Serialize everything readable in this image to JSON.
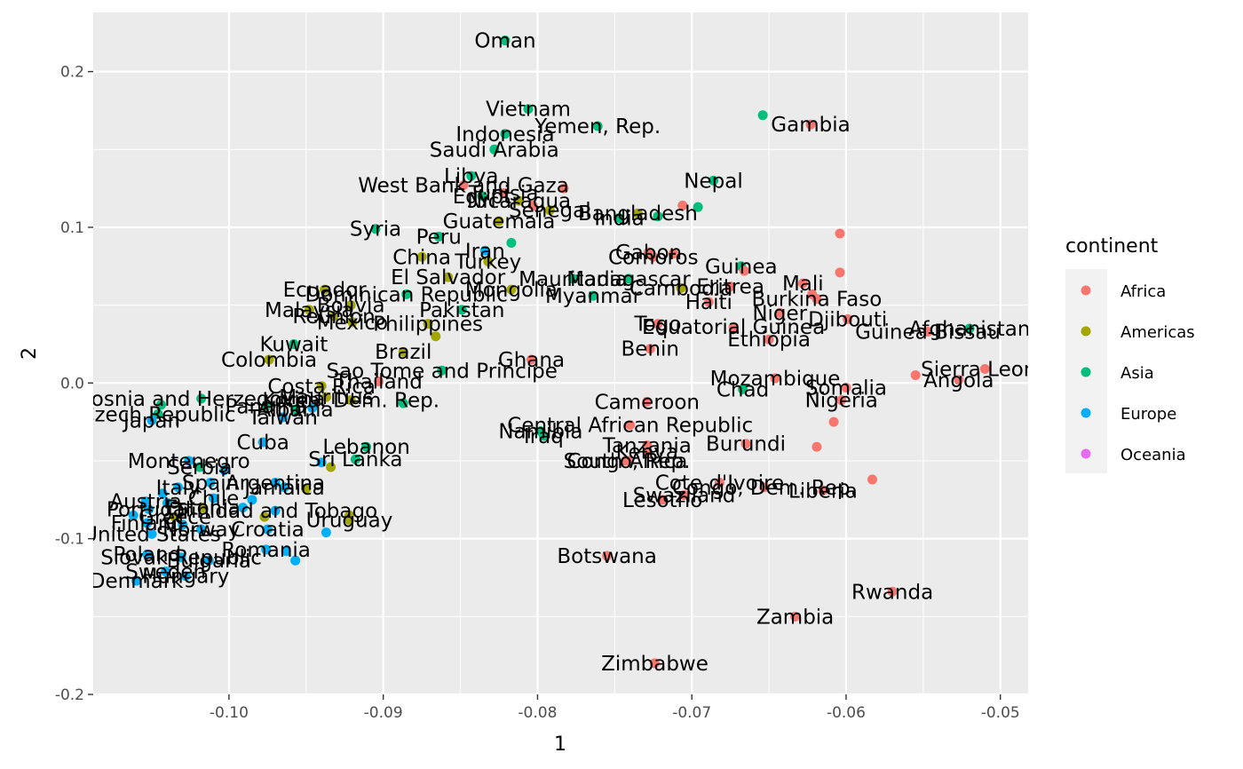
{
  "chart_data": {
    "type": "scatter",
    "title": "",
    "xlabel": "1",
    "ylabel": "2",
    "xlim": [
      -0.1088,
      -0.0482
    ],
    "ylim": [
      -0.2,
      0.238
    ],
    "x_ticks": [
      -0.1,
      -0.09,
      -0.08,
      -0.07,
      -0.06,
      -0.05
    ],
    "x_tick_labels": [
      "-0.10",
      "-0.09",
      "-0.08",
      "-0.07",
      "-0.06",
      "-0.05"
    ],
    "y_ticks": [
      -0.2,
      -0.1,
      0.0,
      0.1,
      0.2
    ],
    "y_tick_labels": [
      "-0.2",
      "-0.1",
      "0.0",
      "0.1",
      "0.2"
    ],
    "grid": true,
    "legend": {
      "title": "continent",
      "position": "right",
      "entries": [
        {
          "name": "Africa",
          "color": "#F8766D"
        },
        {
          "name": "Americas",
          "color": "#A3A500"
        },
        {
          "name": "Asia",
          "color": "#00BF7D"
        },
        {
          "name": "Europe",
          "color": "#00B0F6"
        },
        {
          "name": "Oceania",
          "color": "#E76BF3"
        }
      ]
    },
    "points": [
      {
        "x": -0.0821,
        "y": 0.22,
        "c": "Asia",
        "label": "Oman"
      },
      {
        "x": -0.0806,
        "y": 0.176,
        "c": "Asia",
        "label": "Vietnam"
      },
      {
        "x": -0.0761,
        "y": 0.165,
        "c": "Asia",
        "label": "Yemen, Rep."
      },
      {
        "x": -0.0654,
        "y": 0.172,
        "c": "Asia",
        "label": ""
      },
      {
        "x": -0.0623,
        "y": 0.166,
        "c": "Africa",
        "label": "Gambia"
      },
      {
        "x": -0.0821,
        "y": 0.16,
        "c": "Asia",
        "label": "Indonesia"
      },
      {
        "x": -0.0828,
        "y": 0.15,
        "c": "Asia",
        "label": "Saudi Arabia"
      },
      {
        "x": -0.0843,
        "y": 0.133,
        "c": "Asia",
        "label": "Libya"
      },
      {
        "x": -0.0848,
        "y": 0.127,
        "c": "Africa",
        "label": "West Bank and Gaza"
      },
      {
        "x": -0.0686,
        "y": 0.13,
        "c": "Asia",
        "label": "Nepal"
      },
      {
        "x": -0.0783,
        "y": 0.125,
        "c": "Africa",
        "label": ""
      },
      {
        "x": -0.0822,
        "y": 0.122,
        "c": "Africa",
        "label": "Tunisia"
      },
      {
        "x": -0.0836,
        "y": 0.12,
        "c": "Asia",
        "label": "Egypt"
      },
      {
        "x": -0.0812,
        "y": 0.117,
        "c": "Americas",
        "label": "Nicaragua"
      },
      {
        "x": -0.0803,
        "y": 0.114,
        "c": "Africa",
        "label": ""
      },
      {
        "x": -0.0735,
        "y": 0.109,
        "c": "Americas",
        "label": "Bangladesh"
      },
      {
        "x": -0.0722,
        "y": 0.107,
        "c": "Asia",
        "label": ""
      },
      {
        "x": -0.0706,
        "y": 0.114,
        "c": "Africa",
        "label": ""
      },
      {
        "x": -0.0696,
        "y": 0.113,
        "c": "Asia",
        "label": ""
      },
      {
        "x": -0.0792,
        "y": 0.111,
        "c": "Americas",
        "label": "Senegal"
      },
      {
        "x": -0.0825,
        "y": 0.104,
        "c": "Americas",
        "label": "Guatemala"
      },
      {
        "x": -0.0905,
        "y": 0.099,
        "c": "Asia",
        "label": "Syria"
      },
      {
        "x": -0.0747,
        "y": 0.106,
        "c": "Asia",
        "label": "India"
      },
      {
        "x": -0.0864,
        "y": 0.094,
        "c": "Asia",
        "label": "Peru"
      },
      {
        "x": -0.0817,
        "y": 0.09,
        "c": "Asia",
        "label": ""
      },
      {
        "x": -0.0604,
        "y": 0.096,
        "c": "Africa",
        "label": ""
      },
      {
        "x": -0.0834,
        "y": 0.085,
        "c": "Europe",
        "label": "Iran"
      },
      {
        "x": -0.0728,
        "y": 0.084,
        "c": "Africa",
        "label": "Gabon"
      },
      {
        "x": -0.0725,
        "y": 0.081,
        "c": "Africa",
        "label": "Comoros"
      },
      {
        "x": -0.0712,
        "y": 0.083,
        "c": "Africa",
        "label": ""
      },
      {
        "x": -0.0875,
        "y": 0.081,
        "c": "Americas",
        "label": "China"
      },
      {
        "x": -0.0832,
        "y": 0.078,
        "c": "Americas",
        "label": "Turkey"
      },
      {
        "x": -0.0668,
        "y": 0.075,
        "c": "Asia",
        "label": "Guinea"
      },
      {
        "x": -0.0666,
        "y": 0.072,
        "c": "Africa",
        "label": ""
      },
      {
        "x": -0.0604,
        "y": 0.071,
        "c": "Africa",
        "label": ""
      },
      {
        "x": -0.0858,
        "y": 0.068,
        "c": "Americas",
        "label": "El Salvador"
      },
      {
        "x": -0.0777,
        "y": 0.067,
        "c": "Asia",
        "label": "Mauritania"
      },
      {
        "x": -0.0741,
        "y": 0.067,
        "c": "Asia",
        "label": "Madagascar"
      },
      {
        "x": -0.0628,
        "y": 0.064,
        "c": "Africa",
        "label": "Mali"
      },
      {
        "x": -0.0938,
        "y": 0.06,
        "c": "Americas",
        "label": "Ecuador"
      },
      {
        "x": -0.0707,
        "y": 0.061,
        "c": "Americas",
        "label": "Cambodia"
      },
      {
        "x": -0.0675,
        "y": 0.062,
        "c": "Africa",
        "label": "Eritrea"
      },
      {
        "x": -0.0885,
        "y": 0.057,
        "c": "Asia",
        "label": "Dominican Republic"
      },
      {
        "x": -0.0817,
        "y": 0.06,
        "c": "Americas",
        "label": "Mongolia"
      },
      {
        "x": -0.0764,
        "y": 0.056,
        "c": "Asia",
        "label": "Myanmar"
      },
      {
        "x": -0.0622,
        "y": 0.057,
        "c": "Africa",
        "label": ""
      },
      {
        "x": -0.0619,
        "y": 0.054,
        "c": "Africa",
        "label": "Burkina Faso"
      },
      {
        "x": -0.0689,
        "y": 0.052,
        "c": "Africa",
        "label": "Haiti"
      },
      {
        "x": -0.0921,
        "y": 0.05,
        "c": "Americas",
        "label": "Bolivia"
      },
      {
        "x": -0.0948,
        "y": 0.047,
        "c": "Americas",
        "label": "Malaysia"
      },
      {
        "x": -0.0849,
        "y": 0.047,
        "c": "Asia",
        "label": "Pakistan"
      },
      {
        "x": -0.0643,
        "y": 0.045,
        "c": "Africa",
        "label": "Niger"
      },
      {
        "x": -0.0932,
        "y": 0.043,
        "c": "Americas",
        "label": "Reunion"
      },
      {
        "x": -0.0599,
        "y": 0.041,
        "c": "Africa",
        "label": "Djibouti"
      },
      {
        "x": -0.092,
        "y": 0.039,
        "c": "Americas",
        "label": "Mexico"
      },
      {
        "x": -0.0871,
        "y": 0.038,
        "c": "Americas",
        "label": "Philippines"
      },
      {
        "x": -0.0722,
        "y": 0.038,
        "c": "Africa",
        "label": "Togo"
      },
      {
        "x": -0.0673,
        "y": 0.036,
        "c": "Africa",
        "label": "Equatorial Guinea"
      },
      {
        "x": -0.052,
        "y": 0.035,
        "c": "Asia",
        "label": "Afghanistan"
      },
      {
        "x": -0.0547,
        "y": 0.033,
        "c": "Africa",
        "label": "Guinea-Bissau"
      },
      {
        "x": -0.0866,
        "y": 0.03,
        "c": "Americas",
        "label": ""
      },
      {
        "x": -0.0958,
        "y": 0.025,
        "c": "Asia",
        "label": "Kuwait"
      },
      {
        "x": -0.0727,
        "y": 0.022,
        "c": "Africa",
        "label": "Benin"
      },
      {
        "x": -0.065,
        "y": 0.028,
        "c": "Africa",
        "label": "Ethiopia"
      },
      {
        "x": -0.0887,
        "y": 0.02,
        "c": "Americas",
        "label": "Brazil"
      },
      {
        "x": -0.0974,
        "y": 0.015,
        "c": "Americas",
        "label": "Colombia"
      },
      {
        "x": -0.0804,
        "y": 0.015,
        "c": "Africa",
        "label": "Ghana"
      },
      {
        "x": -0.051,
        "y": 0.009,
        "c": "Africa",
        "label": "Sierra Leone"
      },
      {
        "x": -0.0555,
        "y": 0.005,
        "c": "Africa",
        "label": ""
      },
      {
        "x": -0.0862,
        "y": 0.008,
        "c": "Asia",
        "label": "Sao Tome and Principe"
      },
      {
        "x": -0.0903,
        "y": 0.001,
        "c": "Africa",
        "label": "Thailand"
      },
      {
        "x": -0.0646,
        "y": 0.003,
        "c": "Africa",
        "label": "Mozambique"
      },
      {
        "x": -0.0527,
        "y": 0.002,
        "c": "Africa",
        "label": "Angola"
      },
      {
        "x": -0.094,
        "y": -0.002,
        "c": "Americas",
        "label": "Costa Rica"
      },
      {
        "x": -0.06,
        "y": -0.003,
        "c": "Africa",
        "label": "Somalia"
      },
      {
        "x": -0.0667,
        "y": -0.004,
        "c": "Asia",
        "label": "Chad"
      },
      {
        "x": -0.0937,
        "y": -0.009,
        "c": "Americas",
        "label": "Mauritius"
      },
      {
        "x": -0.0921,
        "y": -0.011,
        "c": "Americas",
        "label": "Korea, Dem. Rep."
      },
      {
        "x": -0.0603,
        "y": -0.011,
        "c": "Africa",
        "label": "Nigeria"
      },
      {
        "x": -0.0729,
        "y": -0.012,
        "c": "Africa",
        "label": "Cameroon"
      },
      {
        "x": -0.0887,
        "y": -0.013,
        "c": "Asia",
        "label": ""
      },
      {
        "x": -0.1018,
        "y": -0.01,
        "c": "Asia",
        "label": "Bosnia and Herzegovina"
      },
      {
        "x": -0.1044,
        "y": -0.014,
        "c": "Asia",
        "label": ""
      },
      {
        "x": -0.0976,
        "y": -0.015,
        "c": "Asia",
        "label": "Panama"
      },
      {
        "x": -0.0957,
        "y": -0.017,
        "c": "Asia",
        "label": "Albania"
      },
      {
        "x": -0.0946,
        "y": -0.016,
        "c": "Europe",
        "label": ""
      },
      {
        "x": -0.1046,
        "y": -0.02,
        "c": "Asia",
        "label": "Czech Republic"
      },
      {
        "x": -0.105,
        "y": -0.024,
        "c": "Europe",
        "label": "Japan"
      },
      {
        "x": -0.0965,
        "y": -0.022,
        "c": "Europe",
        "label": "Taiwan"
      },
      {
        "x": -0.0608,
        "y": -0.025,
        "c": "Africa",
        "label": ""
      },
      {
        "x": -0.074,
        "y": -0.027,
        "c": "Africa",
        "label": "Central African Republic"
      },
      {
        "x": -0.0798,
        "y": -0.031,
        "c": "Asia",
        "label": "Namibia"
      },
      {
        "x": -0.0796,
        "y": -0.034,
        "c": "Asia",
        "label": "Iraq"
      },
      {
        "x": -0.0665,
        "y": -0.039,
        "c": "Africa",
        "label": "Burundi"
      },
      {
        "x": -0.0619,
        "y": -0.041,
        "c": "Africa",
        "label": ""
      },
      {
        "x": -0.0978,
        "y": -0.038,
        "c": "Europe",
        "label": "Cuba"
      },
      {
        "x": -0.0911,
        "y": -0.041,
        "c": "Asia",
        "label": "Lebanon"
      },
      {
        "x": -0.0729,
        "y": -0.04,
        "c": "Africa",
        "label": "Tanzania"
      },
      {
        "x": -0.0729,
        "y": -0.044,
        "c": "Africa",
        "label": "Kenya"
      },
      {
        "x": -0.0741,
        "y": -0.05,
        "c": "Africa",
        "label": "Congo, Rep."
      },
      {
        "x": -0.1026,
        "y": -0.05,
        "c": "Europe",
        "label": "Montenegro"
      },
      {
        "x": -0.0918,
        "y": -0.049,
        "c": "Asia",
        "label": "Sri Lanka"
      },
      {
        "x": -0.1019,
        "y": -0.054,
        "c": "Asia",
        "label": "Serbia"
      },
      {
        "x": -0.1003,
        "y": -0.056,
        "c": "Europe",
        "label": ""
      },
      {
        "x": -0.094,
        "y": -0.051,
        "c": "Europe",
        "label": ""
      },
      {
        "x": -0.0934,
        "y": -0.054,
        "c": "Americas",
        "label": ""
      },
      {
        "x": -0.0743,
        "y": -0.05,
        "c": "Africa",
        "label": "South Africa"
      },
      {
        "x": -0.0583,
        "y": -0.062,
        "c": "Africa",
        "label": ""
      },
      {
        "x": -0.0682,
        "y": -0.064,
        "c": "Africa",
        "label": "Cote d'Ivoire"
      },
      {
        "x": -0.0653,
        "y": -0.067,
        "c": "Africa",
        "label": "Congo, Dem. Rep."
      },
      {
        "x": -0.0615,
        "y": -0.069,
        "c": "Africa",
        "label": "Liberia"
      },
      {
        "x": -0.0705,
        "y": -0.072,
        "c": "Africa",
        "label": "Swaziland"
      },
      {
        "x": -0.0719,
        "y": -0.075,
        "c": "Africa",
        "label": "Lesotho"
      },
      {
        "x": -0.1012,
        "y": -0.064,
        "c": "Europe",
        "label": "Spain"
      },
      {
        "x": -0.097,
        "y": -0.064,
        "c": "Europe",
        "label": "Argentina"
      },
      {
        "x": -0.0964,
        "y": -0.067,
        "c": "Europe",
        "label": "Jamaica"
      },
      {
        "x": -0.095,
        "y": -0.068,
        "c": "Americas",
        "label": ""
      },
      {
        "x": -0.1033,
        "y": -0.067,
        "c": "Europe",
        "label": "Italy"
      },
      {
        "x": -0.1043,
        "y": -0.071,
        "c": "Europe",
        "label": ""
      },
      {
        "x": -0.101,
        "y": -0.074,
        "c": "Europe",
        "label": "Chile"
      },
      {
        "x": -0.0985,
        "y": -0.075,
        "c": "Europe",
        "label": ""
      },
      {
        "x": -0.1054,
        "y": -0.076,
        "c": "Europe",
        "label": "Austria"
      },
      {
        "x": -0.104,
        "y": -0.077,
        "c": "Europe",
        "label": ""
      },
      {
        "x": -0.1017,
        "y": -0.08,
        "c": "Americas",
        "label": "Estonia"
      },
      {
        "x": -0.0991,
        "y": -0.08,
        "c": "Europe",
        "label": ""
      },
      {
        "x": -0.097,
        "y": -0.082,
        "c": "Europe",
        "label": "Trinidad and Tobago"
      },
      {
        "x": -0.0922,
        "y": -0.085,
        "c": "Americas",
        "label": ""
      },
      {
        "x": -0.1052,
        "y": -0.081,
        "c": "Europe",
        "label": "Portugal"
      },
      {
        "x": -0.1062,
        "y": -0.085,
        "c": "Europe",
        "label": ""
      },
      {
        "x": -0.1035,
        "y": -0.086,
        "c": "Americas",
        "label": "Greece"
      },
      {
        "x": -0.0977,
        "y": -0.086,
        "c": "Americas",
        "label": ""
      },
      {
        "x": -0.0922,
        "y": -0.088,
        "c": "Americas",
        "label": "Uruguay"
      },
      {
        "x": -0.1053,
        "y": -0.09,
        "c": "Europe",
        "label": "Finland"
      },
      {
        "x": -0.103,
        "y": -0.091,
        "c": "Europe",
        "label": ""
      },
      {
        "x": -0.1018,
        "y": -0.094,
        "c": "Europe",
        "label": "Norway"
      },
      {
        "x": -0.0975,
        "y": -0.094,
        "c": "Europe",
        "label": "Croatia"
      },
      {
        "x": -0.0937,
        "y": -0.096,
        "c": "Europe",
        "label": ""
      },
      {
        "x": -0.105,
        "y": -0.097,
        "c": "Europe",
        "label": "United States"
      },
      {
        "x": -0.0976,
        "y": -0.107,
        "c": "Europe",
        "label": "Romania"
      },
      {
        "x": -0.0963,
        "y": -0.108,
        "c": "Europe",
        "label": ""
      },
      {
        "x": -0.0957,
        "y": -0.114,
        "c": "Europe",
        "label": ""
      },
      {
        "x": -0.1053,
        "y": -0.11,
        "c": "Europe",
        "label": "Poland"
      },
      {
        "x": -0.1031,
        "y": -0.112,
        "c": "Europe",
        "label": "Slovak Republic"
      },
      {
        "x": -0.1013,
        "y": -0.114,
        "c": "Europe",
        "label": "Bulgaria"
      },
      {
        "x": -0.1041,
        "y": -0.121,
        "c": "Europe",
        "label": "Sweden"
      },
      {
        "x": -0.1028,
        "y": -0.124,
        "c": "Europe",
        "label": "Hungary"
      },
      {
        "x": -0.106,
        "y": -0.127,
        "c": "Europe",
        "label": "Denmark"
      },
      {
        "x": -0.0755,
        "y": -0.111,
        "c": "Africa",
        "label": "Botswana"
      },
      {
        "x": -0.057,
        "y": -0.134,
        "c": "Africa",
        "label": "Rwanda"
      },
      {
        "x": -0.0633,
        "y": -0.15,
        "c": "Africa",
        "label": "Zambia"
      },
      {
        "x": -0.0724,
        "y": -0.18,
        "c": "Africa",
        "label": "Zimbabwe"
      }
    ]
  }
}
